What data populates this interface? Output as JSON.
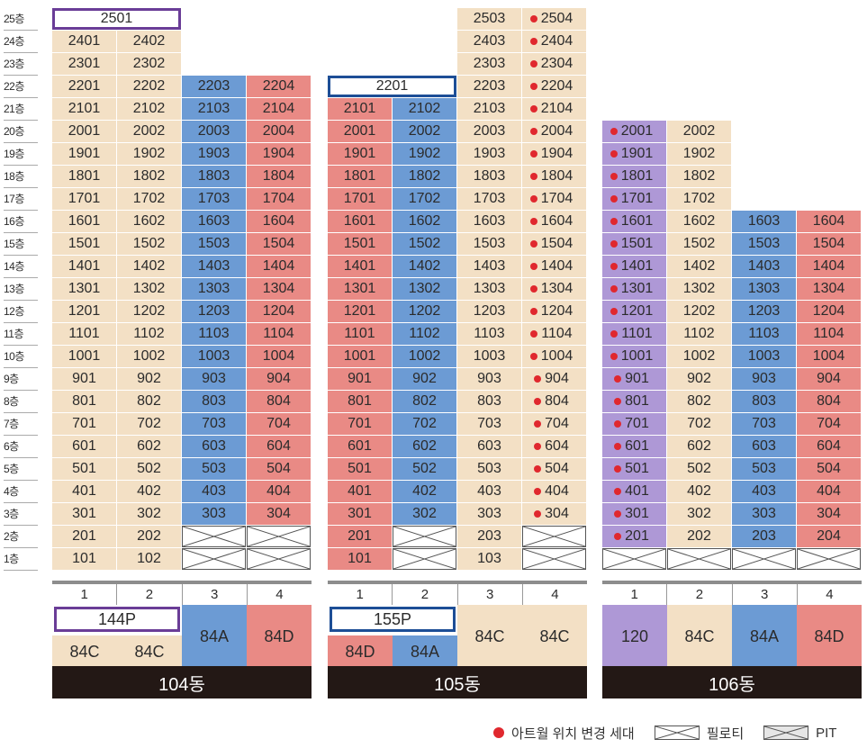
{
  "colors": {
    "beige": "#f3e0c5",
    "blue": "#6c9bd4",
    "pink": "#e98a85",
    "purple": "#ae98d6",
    "red_dot": "#e0282e",
    "outline_104": "#6a3d97",
    "outline_105": "#1d4e96",
    "dark_bar": "#231815"
  },
  "floors": [
    "25층",
    "24층",
    "23층",
    "22층",
    "21층",
    "20층",
    "19층",
    "18층",
    "17층",
    "16층",
    "15층",
    "14층",
    "13층",
    "12층",
    "11층",
    "10층",
    "9층",
    "8층",
    "7층",
    "6층",
    "5층",
    "4층",
    "3층",
    "2층",
    "1층"
  ],
  "buildings": [
    {
      "name": "104동",
      "lines": [
        "1",
        "2",
        "3",
        "4"
      ],
      "types": [
        {
          "header": "144P",
          "subs": [
            "84C",
            "84C"
          ]
        },
        {
          "label": "84A"
        },
        {
          "label": "84D"
        }
      ],
      "penthouse_label": "2501"
    },
    {
      "name": "105동",
      "lines": [
        "1",
        "2",
        "3",
        "4"
      ],
      "types": [
        {
          "header": "155P",
          "subs": [
            "84D",
            "84A"
          ]
        },
        {
          "label": "84C"
        },
        {
          "label": "84C"
        }
      ],
      "penthouse_label": "2201"
    },
    {
      "name": "106동",
      "lines": [
        "1",
        "2",
        "3",
        "4"
      ],
      "types": [
        {
          "label": "120"
        },
        {
          "label": "84C"
        },
        {
          "label": "84A"
        },
        {
          "label": "84D"
        }
      ]
    }
  ],
  "legend": {
    "moved_unit": "아트월 위치 변경 세대",
    "piloti": "필로티",
    "pit": "PIT"
  }
}
